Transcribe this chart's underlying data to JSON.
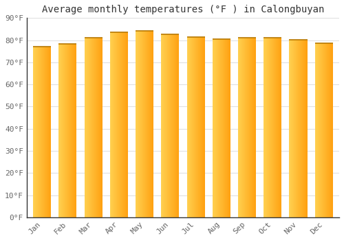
{
  "title": "Average monthly temperatures (°F ) in Calongbuyan",
  "months": [
    "Jan",
    "Feb",
    "Mar",
    "Apr",
    "May",
    "Jun",
    "Jul",
    "Aug",
    "Sep",
    "Oct",
    "Nov",
    "Dec"
  ],
  "values": [
    77.2,
    78.3,
    81.0,
    83.5,
    84.2,
    82.5,
    81.3,
    80.4,
    81.0,
    81.2,
    80.3,
    78.5
  ],
  "bar_color_left": "#FFD050",
  "bar_color_right": "#FFA010",
  "bar_top_line_color": "#B87800",
  "background_color": "#FFFFFF",
  "grid_color": "#E0E0E0",
  "ylim": [
    0,
    90
  ],
  "yticks": [
    0,
    10,
    20,
    30,
    40,
    50,
    60,
    70,
    80,
    90
  ],
  "title_fontsize": 10,
  "tick_fontsize": 8,
  "bar_width": 0.7
}
